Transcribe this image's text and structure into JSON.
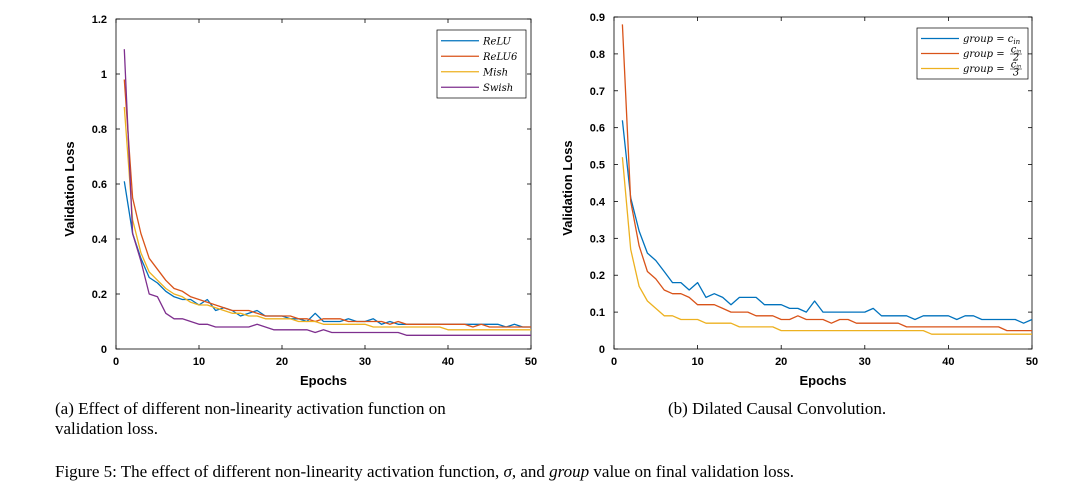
{
  "chart_data": [
    {
      "type": "line",
      "xlabel": "Epochs",
      "ylabel": "Validation Loss",
      "xlim": [
        0,
        50
      ],
      "ylim": [
        0,
        1.2
      ],
      "xticks": [
        0,
        10,
        20,
        30,
        40,
        50
      ],
      "xtick_labels": [
        "0",
        "10",
        "20",
        "30",
        "40",
        "50"
      ],
      "yticks": [
        0,
        0.2,
        0.4,
        0.6,
        0.8,
        1.0,
        1.2
      ],
      "ytick_labels": [
        "0",
        "0.2",
        "0.4",
        "0.6",
        "0.8",
        "1",
        "1.2"
      ],
      "grid": false,
      "legend_position": "top-right",
      "x": [
        1,
        2,
        3,
        4,
        5,
        6,
        7,
        8,
        9,
        10,
        11,
        12,
        13,
        14,
        15,
        16,
        17,
        18,
        19,
        20,
        21,
        22,
        23,
        24,
        25,
        26,
        27,
        28,
        29,
        30,
        31,
        32,
        33,
        34,
        35,
        36,
        37,
        38,
        39,
        40,
        41,
        42,
        43,
        44,
        45,
        46,
        47,
        48,
        49,
        50
      ],
      "series": [
        {
          "name": "ReLU",
          "color": "#0072BD",
          "values": [
            0.61,
            0.42,
            0.33,
            0.26,
            0.24,
            0.21,
            0.19,
            0.18,
            0.18,
            0.16,
            0.18,
            0.14,
            0.15,
            0.14,
            0.12,
            0.13,
            0.14,
            0.12,
            0.12,
            0.12,
            0.11,
            0.11,
            0.1,
            0.13,
            0.1,
            0.1,
            0.1,
            0.11,
            0.1,
            0.1,
            0.11,
            0.09,
            0.1,
            0.09,
            0.09,
            0.09,
            0.09,
            0.09,
            0.09,
            0.09,
            0.09,
            0.09,
            0.09,
            0.09,
            0.09,
            0.09,
            0.08,
            0.09,
            0.08,
            0.08
          ]
        },
        {
          "name": "ReLU6",
          "color": "#D95319",
          "values": [
            0.98,
            0.55,
            0.42,
            0.33,
            0.29,
            0.25,
            0.22,
            0.21,
            0.19,
            0.18,
            0.17,
            0.16,
            0.15,
            0.14,
            0.14,
            0.14,
            0.13,
            0.12,
            0.12,
            0.12,
            0.12,
            0.11,
            0.11,
            0.1,
            0.11,
            0.11,
            0.11,
            0.1,
            0.1,
            0.1,
            0.1,
            0.1,
            0.09,
            0.1,
            0.09,
            0.09,
            0.09,
            0.09,
            0.09,
            0.09,
            0.09,
            0.09,
            0.08,
            0.09,
            0.08,
            0.08,
            0.08,
            0.08,
            0.08,
            0.08
          ]
        },
        {
          "name": "Mish",
          "color": "#EDB120",
          "values": [
            0.88,
            0.47,
            0.35,
            0.28,
            0.25,
            0.22,
            0.2,
            0.19,
            0.17,
            0.16,
            0.16,
            0.15,
            0.14,
            0.13,
            0.13,
            0.12,
            0.12,
            0.11,
            0.11,
            0.11,
            0.11,
            0.1,
            0.1,
            0.1,
            0.09,
            0.09,
            0.09,
            0.09,
            0.09,
            0.09,
            0.08,
            0.08,
            0.08,
            0.08,
            0.08,
            0.08,
            0.08,
            0.08,
            0.08,
            0.07,
            0.07,
            0.07,
            0.07,
            0.07,
            0.07,
            0.07,
            0.07,
            0.07,
            0.07,
            0.07
          ]
        },
        {
          "name": "Swish",
          "color": "#7E2F8E",
          "values": [
            1.09,
            0.42,
            0.32,
            0.2,
            0.19,
            0.13,
            0.11,
            0.11,
            0.1,
            0.09,
            0.09,
            0.08,
            0.08,
            0.08,
            0.08,
            0.08,
            0.09,
            0.08,
            0.07,
            0.07,
            0.07,
            0.07,
            0.07,
            0.06,
            0.07,
            0.06,
            0.06,
            0.06,
            0.06,
            0.06,
            0.06,
            0.06,
            0.06,
            0.06,
            0.05,
            0.05,
            0.05,
            0.05,
            0.05,
            0.05,
            0.05,
            0.05,
            0.05,
            0.05,
            0.05,
            0.05,
            0.05,
            0.05,
            0.05,
            0.05
          ]
        }
      ]
    },
    {
      "type": "line",
      "xlabel": "Epochs",
      "ylabel": "Validation Loss",
      "xlim": [
        0,
        50
      ],
      "ylim": [
        0,
        0.9
      ],
      "xticks": [
        0,
        10,
        20,
        30,
        40,
        50
      ],
      "xtick_labels": [
        "0",
        "10",
        "20",
        "30",
        "40",
        "50"
      ],
      "yticks": [
        0,
        0.1,
        0.2,
        0.3,
        0.4,
        0.5,
        0.6,
        0.7,
        0.8,
        0.9
      ],
      "ytick_labels": [
        "0",
        "0.1",
        "0.2",
        "0.3",
        "0.4",
        "0.5",
        "0.6",
        "0.7",
        "0.8",
        "0.9"
      ],
      "grid": false,
      "legend_position": "top-right",
      "x": [
        1,
        2,
        3,
        4,
        5,
        6,
        7,
        8,
        9,
        10,
        11,
        12,
        13,
        14,
        15,
        16,
        17,
        18,
        19,
        20,
        21,
        22,
        23,
        24,
        25,
        26,
        27,
        28,
        29,
        30,
        31,
        32,
        33,
        34,
        35,
        36,
        37,
        38,
        39,
        40,
        41,
        42,
        43,
        44,
        45,
        46,
        47,
        48,
        49,
        50
      ],
      "series": [
        {
          "name": "group = c_in",
          "label_main": "group = c",
          "label_sub": "in",
          "color": "#0072BD",
          "values": [
            0.62,
            0.41,
            0.32,
            0.26,
            0.24,
            0.21,
            0.18,
            0.18,
            0.16,
            0.18,
            0.14,
            0.15,
            0.14,
            0.12,
            0.14,
            0.14,
            0.14,
            0.12,
            0.12,
            0.12,
            0.11,
            0.11,
            0.1,
            0.13,
            0.1,
            0.1,
            0.1,
            0.1,
            0.1,
            0.1,
            0.11,
            0.09,
            0.09,
            0.09,
            0.09,
            0.08,
            0.09,
            0.09,
            0.09,
            0.09,
            0.08,
            0.09,
            0.09,
            0.08,
            0.08,
            0.08,
            0.08,
            0.08,
            0.07,
            0.08
          ]
        },
        {
          "name": "group = c_in/2",
          "label_main": "group =",
          "label_num": "c",
          "label_num_sub": "in",
          "label_den": "2",
          "color": "#D95319",
          "values": [
            0.88,
            0.4,
            0.28,
            0.21,
            0.19,
            0.16,
            0.15,
            0.15,
            0.14,
            0.12,
            0.12,
            0.12,
            0.11,
            0.1,
            0.1,
            0.1,
            0.09,
            0.09,
            0.09,
            0.08,
            0.08,
            0.09,
            0.08,
            0.08,
            0.08,
            0.07,
            0.08,
            0.08,
            0.07,
            0.07,
            0.07,
            0.07,
            0.07,
            0.07,
            0.06,
            0.06,
            0.06,
            0.06,
            0.06,
            0.06,
            0.06,
            0.06,
            0.06,
            0.06,
            0.06,
            0.06,
            0.05,
            0.05,
            0.05,
            0.05
          ]
        },
        {
          "name": "group = c_in/3",
          "label_main": "group =",
          "label_num": "c",
          "label_num_sub": "in",
          "label_den": "3",
          "color": "#EDB120",
          "values": [
            0.52,
            0.27,
            0.17,
            0.13,
            0.11,
            0.09,
            0.09,
            0.08,
            0.08,
            0.08,
            0.07,
            0.07,
            0.07,
            0.07,
            0.06,
            0.06,
            0.06,
            0.06,
            0.06,
            0.05,
            0.05,
            0.05,
            0.05,
            0.05,
            0.05,
            0.05,
            0.05,
            0.05,
            0.05,
            0.05,
            0.05,
            0.05,
            0.05,
            0.05,
            0.05,
            0.05,
            0.05,
            0.04,
            0.04,
            0.04,
            0.04,
            0.04,
            0.04,
            0.04,
            0.04,
            0.04,
            0.04,
            0.04,
            0.04,
            0.04
          ]
        }
      ]
    }
  ],
  "captions": {
    "sub_a_line1": "(a) Effect of different non-linearity activation function on",
    "sub_a_line2": "validation loss.",
    "sub_b": "(b) Dilated Causal Convolution.",
    "figure_prefix": "Figure 5: The effect of different non-linearity activation function,",
    "figure_sigma": "σ",
    "figure_mid": ", and",
    "figure_group": "group",
    "figure_suffix": "value on final validation loss."
  }
}
